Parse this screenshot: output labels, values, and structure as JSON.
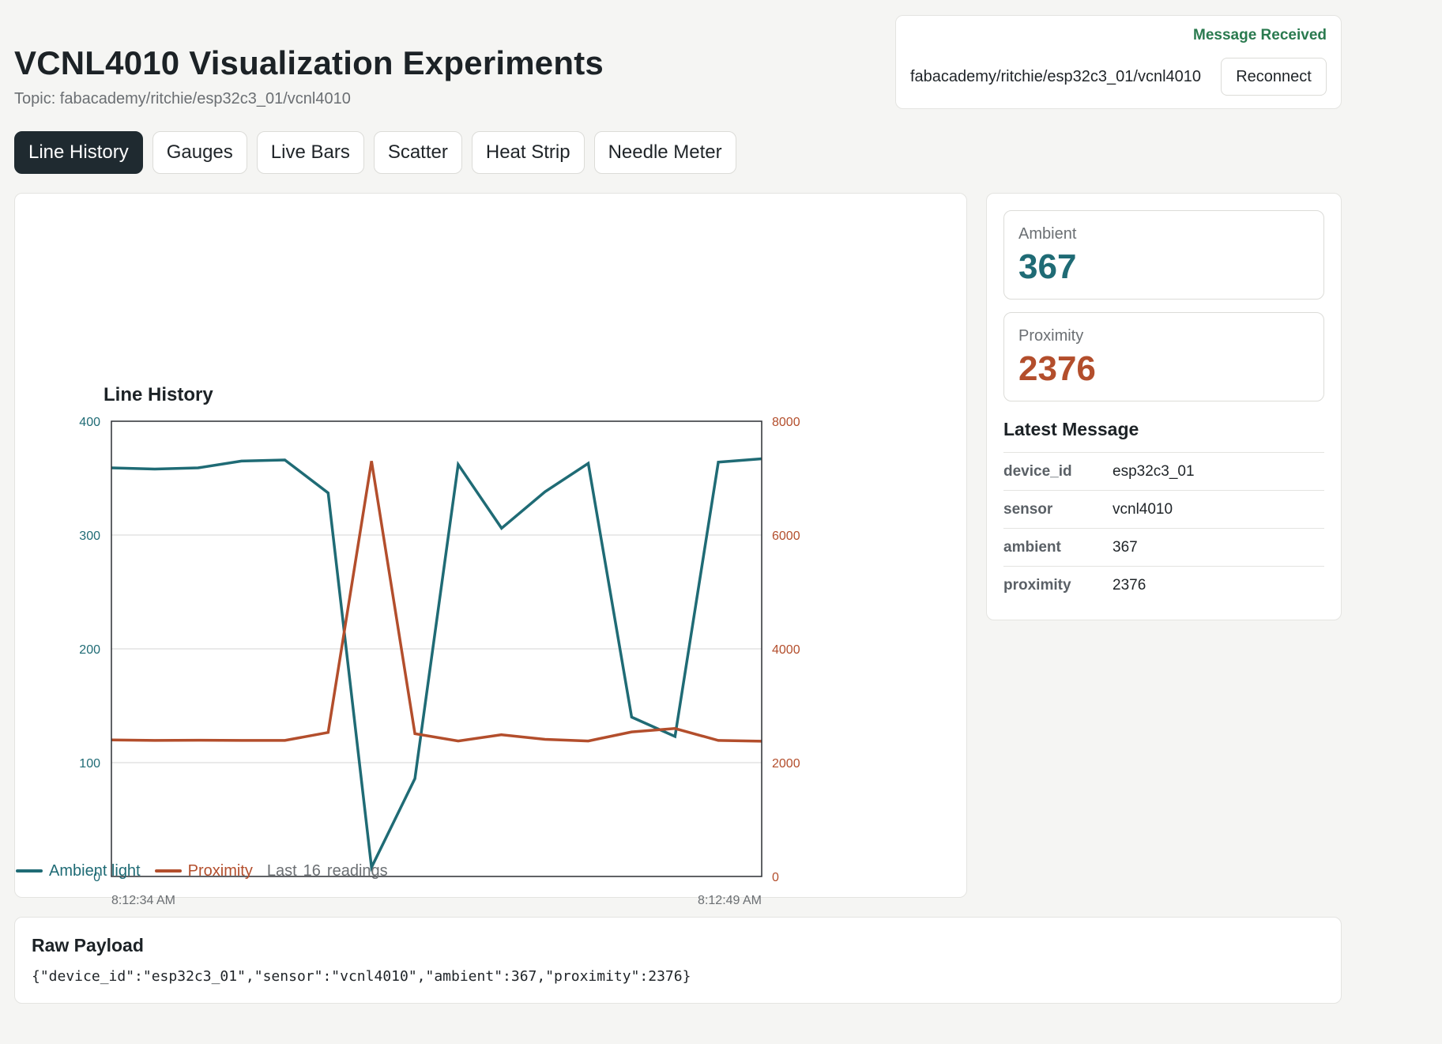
{
  "header": {
    "title": "VCNL4010 Visualization Experiments",
    "topic_text": "Topic: fabacademy/ritchie/esp32c3_01/vcnl4010"
  },
  "connection": {
    "status": "Message Received",
    "status_color": "#2a7a4f",
    "topic": "fabacademy/ritchie/esp32c3_01/vcnl4010",
    "reconnect_label": "Reconnect"
  },
  "tabs": [
    {
      "label": "Line History",
      "active": true
    },
    {
      "label": "Gauges",
      "active": false
    },
    {
      "label": "Live Bars",
      "active": false
    },
    {
      "label": "Scatter",
      "active": false
    },
    {
      "label": "Heat Strip",
      "active": false
    },
    {
      "label": "Needle Meter",
      "active": false
    }
  ],
  "legend": {
    "ambient": "Ambient light",
    "proximity": "Proximity",
    "last_prefix": "Last",
    "count": "16",
    "last_suffix": "readings"
  },
  "metrics": {
    "ambient": {
      "label": "Ambient",
      "value": "367",
      "color": "#1f6b75"
    },
    "proximity": {
      "label": "Proximity",
      "value": "2376",
      "color": "#b34e2c"
    }
  },
  "latest_message": {
    "title": "Latest Message",
    "rows": [
      {
        "key": "device_id",
        "value": "esp32c3_01"
      },
      {
        "key": "sensor",
        "value": "vcnl4010"
      },
      {
        "key": "ambient",
        "value": "367"
      },
      {
        "key": "proximity",
        "value": "2376"
      }
    ]
  },
  "raw_payload": {
    "title": "Raw Payload",
    "text": "{\"device_id\":\"esp32c3_01\",\"sensor\":\"vcnl4010\",\"ambient\":367,\"proximity\":2376}"
  },
  "chart_data": {
    "type": "line",
    "title": "Line History",
    "x_labels": [
      "8:12:34 AM",
      "8:12:49 AM"
    ],
    "x": [
      1,
      2,
      3,
      4,
      5,
      6,
      7,
      8,
      9,
      10,
      11,
      12,
      13,
      14,
      15,
      16
    ],
    "y_left": {
      "ylim": [
        0,
        400
      ],
      "ticks": [
        0,
        100,
        200,
        300,
        400
      ],
      "color": "#1f6b75"
    },
    "y_right": {
      "ylim": [
        0,
        8000
      ],
      "ticks": [
        0,
        2000,
        4000,
        6000,
        8000
      ],
      "color": "#b34e2c"
    },
    "grid": true,
    "series": [
      {
        "name": "Ambient light",
        "axis": "left",
        "color": "#1f6b75",
        "values": [
          359,
          358,
          359,
          365,
          366,
          337,
          8,
          86,
          362,
          306,
          338,
          363,
          140,
          123,
          364,
          367
        ]
      },
      {
        "name": "Proximity",
        "axis": "right",
        "color": "#b34e2c",
        "values": [
          2400,
          2390,
          2395,
          2390,
          2390,
          2530,
          7300,
          2510,
          2380,
          2490,
          2410,
          2380,
          2540,
          2600,
          2390,
          2376
        ]
      }
    ]
  }
}
